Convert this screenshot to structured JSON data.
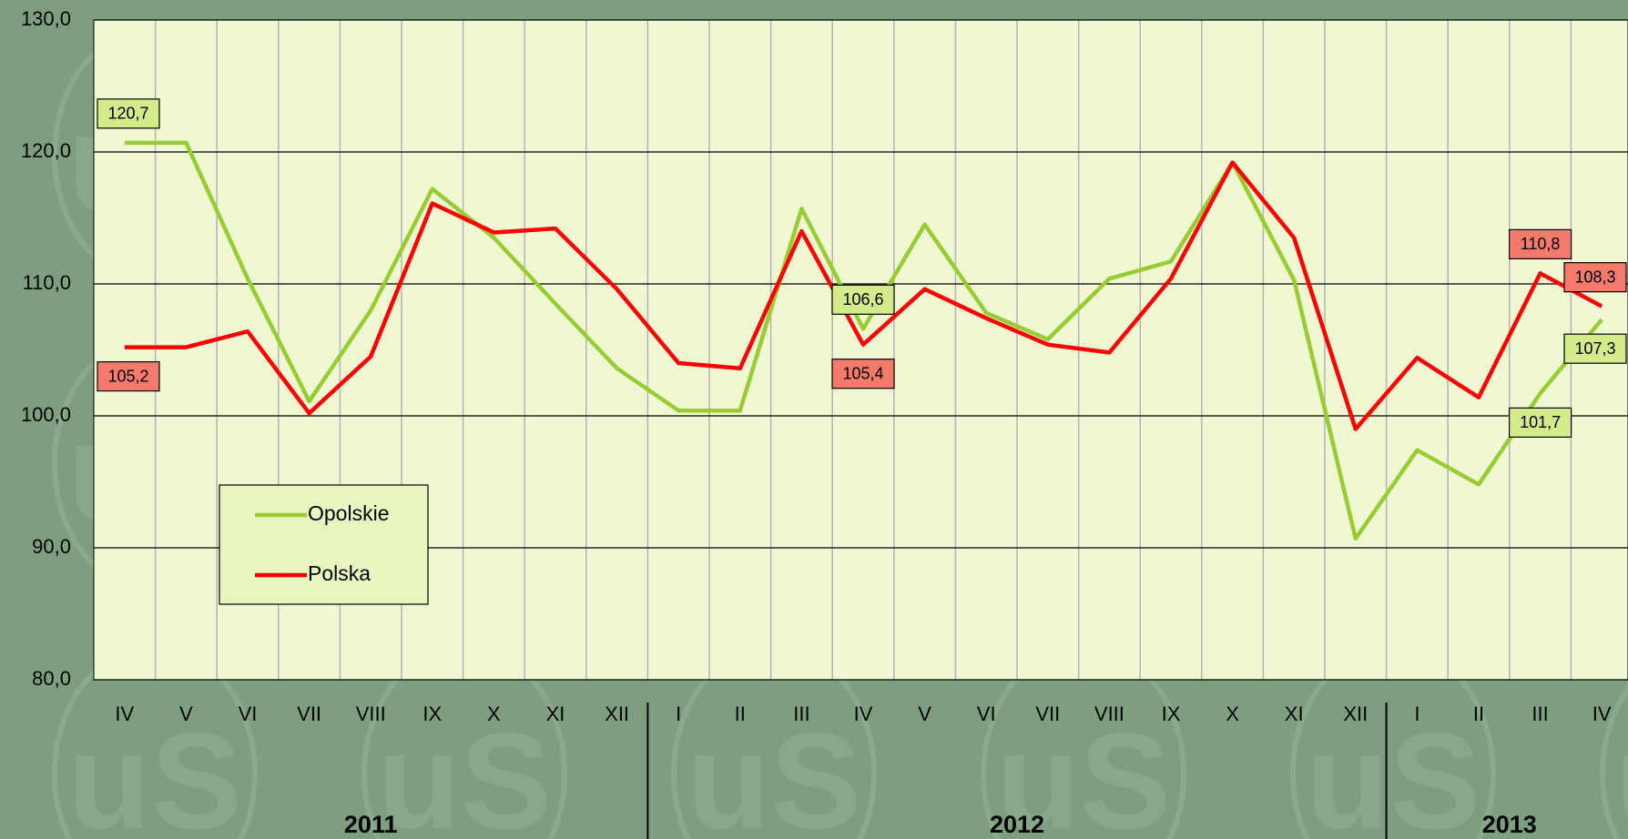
{
  "chart_data": {
    "type": "line",
    "groups": [
      {
        "name": "2011",
        "categories": [
          "IV",
          "V",
          "VI",
          "VII",
          "VIII",
          "IX",
          "X",
          "XI",
          "XII"
        ]
      },
      {
        "name": "2012",
        "categories": [
          "I",
          "II",
          "III",
          "IV",
          "V",
          "VI",
          "VII",
          "VIII",
          "IX",
          "X",
          "XI",
          "XII"
        ]
      },
      {
        "name": "2013",
        "categories": [
          "I",
          "II",
          "III",
          "IV"
        ]
      }
    ],
    "series": [
      {
        "name": "Opolskie",
        "color": "#99cc33",
        "label_fill": "#d4eb8c",
        "values": [
          120.7,
          120.7,
          110.4,
          101.1,
          108.0,
          117.2,
          113.5,
          108.5,
          103.6,
          100.4,
          100.4,
          115.7,
          106.6,
          114.5,
          107.8,
          105.8,
          110.4,
          111.7,
          119.2,
          110.3,
          90.7,
          97.4,
          94.8,
          101.7,
          107.3
        ],
        "value_labels": [
          "120,7",
          null,
          null,
          null,
          null,
          null,
          null,
          null,
          null,
          null,
          null,
          null,
          "106,6",
          null,
          null,
          null,
          null,
          null,
          null,
          null,
          null,
          null,
          null,
          "101,7",
          "107,3"
        ]
      },
      {
        "name": "Polska",
        "color": "#ff0000",
        "label_fill": "#f47b6c",
        "values": [
          105.2,
          105.2,
          106.4,
          100.2,
          104.5,
          116.1,
          113.9,
          114.2,
          109.6,
          104.0,
          103.6,
          114.0,
          105.4,
          109.6,
          107.4,
          105.4,
          104.8,
          110.4,
          119.2,
          113.5,
          99.0,
          104.4,
          101.4,
          110.8,
          108.3
        ],
        "value_labels": [
          "105,2",
          null,
          null,
          null,
          null,
          null,
          null,
          null,
          null,
          null,
          null,
          null,
          "105,4",
          null,
          null,
          null,
          null,
          null,
          null,
          null,
          null,
          null,
          null,
          "110,8",
          "108,3"
        ]
      }
    ],
    "ylim": [
      80,
      130
    ],
    "yticks": [
      {
        "value": 80,
        "label": "80,0"
      },
      {
        "value": 90,
        "label": "90,0"
      },
      {
        "value": 100,
        "label": "100,0"
      },
      {
        "value": 110,
        "label": "110,0"
      },
      {
        "value": 120,
        "label": "120,0"
      },
      {
        "value": 130,
        "label": "130,0"
      }
    ],
    "grid": true,
    "legend": "left"
  }
}
